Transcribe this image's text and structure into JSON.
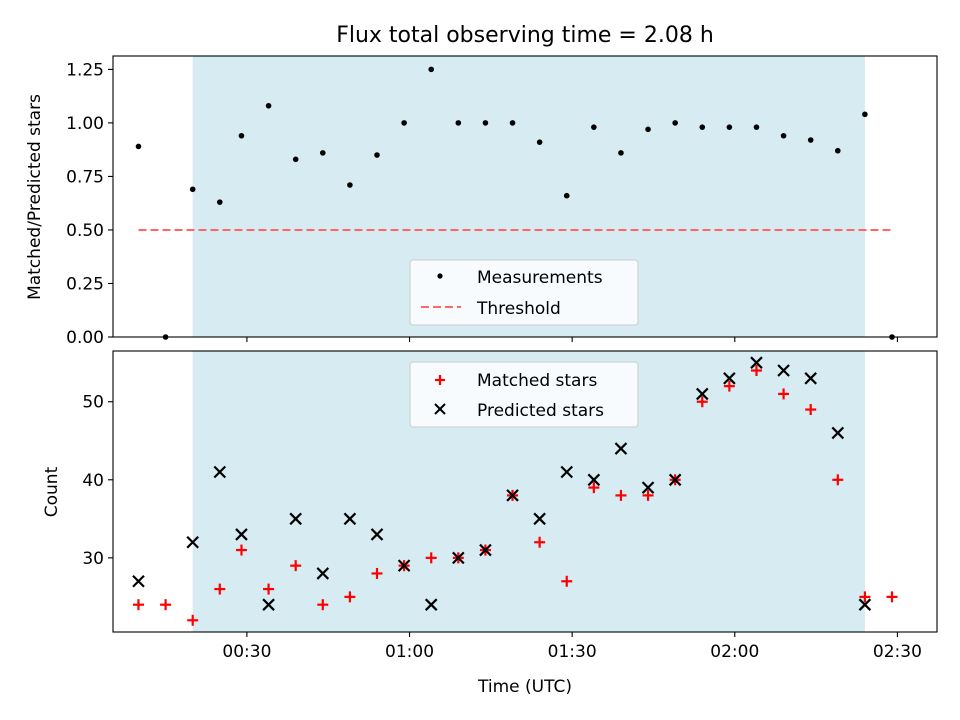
{
  "chart_data": [
    {
      "type": "scatter",
      "title": "Flux total observing time = 2.08 h",
      "xlabel": "",
      "ylabel": "Matched/Predicted stars",
      "ylim": [
        0,
        1.3125
      ],
      "yticks": [
        0.0,
        0.25,
        0.5,
        0.75,
        1.0,
        1.25
      ],
      "ytick_labels": [
        "0.00",
        "0.25",
        "0.50",
        "0.75",
        "1.00",
        "1.25"
      ],
      "shaded_interval": [
        "00:20",
        "02:24"
      ],
      "shade_color": "#add8e6",
      "legend_position": "lower center",
      "series": [
        {
          "name": "Measurements",
          "marker": "dot",
          "color": "#000000",
          "points": [
            {
              "t": "00:10",
              "y": 0.89
            },
            {
              "t": "00:15",
              "y": 0.0
            },
            {
              "t": "00:20",
              "y": 0.69
            },
            {
              "t": "00:25",
              "y": 0.63
            },
            {
              "t": "00:29",
              "y": 0.94
            },
            {
              "t": "00:34",
              "y": 1.08
            },
            {
              "t": "00:39",
              "y": 0.83
            },
            {
              "t": "00:44",
              "y": 0.86
            },
            {
              "t": "00:49",
              "y": 0.71
            },
            {
              "t": "00:54",
              "y": 0.85
            },
            {
              "t": "00:59",
              "y": 1.0
            },
            {
              "t": "01:04",
              "y": 1.25
            },
            {
              "t": "01:09",
              "y": 1.0
            },
            {
              "t": "01:14",
              "y": 1.0
            },
            {
              "t": "01:19",
              "y": 1.0
            },
            {
              "t": "01:24",
              "y": 0.91
            },
            {
              "t": "01:29",
              "y": 0.66
            },
            {
              "t": "01:34",
              "y": 0.98
            },
            {
              "t": "01:39",
              "y": 0.86
            },
            {
              "t": "01:44",
              "y": 0.97
            },
            {
              "t": "01:49",
              "y": 1.0
            },
            {
              "t": "01:54",
              "y": 0.98
            },
            {
              "t": "01:59",
              "y": 0.98
            },
            {
              "t": "02:04",
              "y": 0.98
            },
            {
              "t": "02:09",
              "y": 0.94
            },
            {
              "t": "02:14",
              "y": 0.92
            },
            {
              "t": "02:19",
              "y": 0.87
            },
            {
              "t": "02:24",
              "y": 1.04
            },
            {
              "t": "02:29",
              "y": 0.0
            }
          ]
        },
        {
          "name": "Threshold",
          "marker": "dashed-line",
          "color": "#ff6666",
          "x_range": [
            "00:10",
            "02:29"
          ],
          "y": 0.5
        }
      ]
    },
    {
      "type": "scatter",
      "title": "",
      "xlabel": "Time (UTC)",
      "ylabel": "Count",
      "ylim": [
        20.5,
        56.5
      ],
      "yticks": [
        30,
        40,
        50
      ],
      "ytick_labels": [
        "30",
        "40",
        "50"
      ],
      "xticks": [
        "00:30",
        "01:00",
        "01:30",
        "02:00",
        "02:30"
      ],
      "shaded_interval": [
        "00:20",
        "02:24"
      ],
      "shade_color": "#add8e6",
      "legend_position": "upper center",
      "series": [
        {
          "name": "Matched stars",
          "marker": "plus",
          "color": "#ff0000",
          "points": [
            {
              "t": "00:10",
              "y": 24
            },
            {
              "t": "00:15",
              "y": 24
            },
            {
              "t": "00:20",
              "y": 22
            },
            {
              "t": "00:25",
              "y": 26
            },
            {
              "t": "00:29",
              "y": 31
            },
            {
              "t": "00:34",
              "y": 26
            },
            {
              "t": "00:39",
              "y": 29
            },
            {
              "t": "00:44",
              "y": 24
            },
            {
              "t": "00:49",
              "y": 25
            },
            {
              "t": "00:54",
              "y": 28
            },
            {
              "t": "00:59",
              "y": 29
            },
            {
              "t": "01:04",
              "y": 30
            },
            {
              "t": "01:09",
              "y": 30
            },
            {
              "t": "01:14",
              "y": 31
            },
            {
              "t": "01:19",
              "y": 38
            },
            {
              "t": "01:24",
              "y": 32
            },
            {
              "t": "01:29",
              "y": 27
            },
            {
              "t": "01:34",
              "y": 39
            },
            {
              "t": "01:39",
              "y": 38
            },
            {
              "t": "01:44",
              "y": 38
            },
            {
              "t": "01:49",
              "y": 40
            },
            {
              "t": "01:54",
              "y": 50
            },
            {
              "t": "01:59",
              "y": 52
            },
            {
              "t": "02:04",
              "y": 54
            },
            {
              "t": "02:09",
              "y": 51
            },
            {
              "t": "02:14",
              "y": 49
            },
            {
              "t": "02:19",
              "y": 40
            },
            {
              "t": "02:24",
              "y": 25
            },
            {
              "t": "02:29",
              "y": 25
            }
          ]
        },
        {
          "name": "Predicted stars",
          "marker": "x",
          "color": "#000000",
          "points": [
            {
              "t": "00:10",
              "y": 27
            },
            {
              "t": "00:20",
              "y": 32
            },
            {
              "t": "00:25",
              "y": 41
            },
            {
              "t": "00:29",
              "y": 33
            },
            {
              "t": "00:34",
              "y": 24
            },
            {
              "t": "00:39",
              "y": 35
            },
            {
              "t": "00:44",
              "y": 28
            },
            {
              "t": "00:49",
              "y": 35
            },
            {
              "t": "00:54",
              "y": 33
            },
            {
              "t": "00:59",
              "y": 29
            },
            {
              "t": "01:04",
              "y": 24
            },
            {
              "t": "01:09",
              "y": 30
            },
            {
              "t": "01:14",
              "y": 31
            },
            {
              "t": "01:19",
              "y": 38
            },
            {
              "t": "01:24",
              "y": 35
            },
            {
              "t": "01:29",
              "y": 41
            },
            {
              "t": "01:34",
              "y": 40
            },
            {
              "t": "01:39",
              "y": 44
            },
            {
              "t": "01:44",
              "y": 39
            },
            {
              "t": "01:49",
              "y": 40
            },
            {
              "t": "01:54",
              "y": 51
            },
            {
              "t": "01:59",
              "y": 53
            },
            {
              "t": "02:04",
              "y": 55
            },
            {
              "t": "02:09",
              "y": 54
            },
            {
              "t": "02:14",
              "y": 53
            },
            {
              "t": "02:19",
              "y": 46
            },
            {
              "t": "02:24",
              "y": 24
            }
          ]
        }
      ]
    }
  ]
}
